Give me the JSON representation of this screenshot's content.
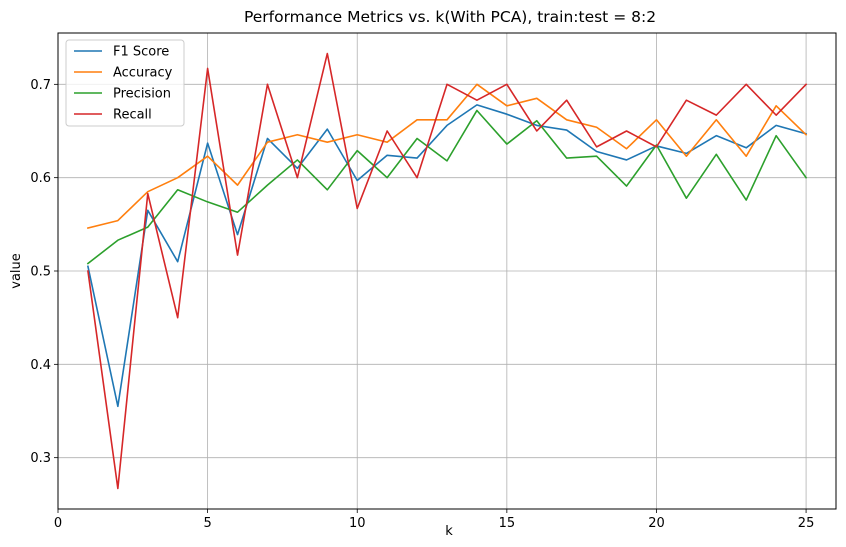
{
  "chart_data": {
    "type": "line",
    "title": "Performance Metrics vs. k(With PCA), train:test = 8:2",
    "xlabel": "k",
    "ylabel": "value",
    "xlim": [
      0,
      26
    ],
    "ylim": [
      0.245,
      0.755
    ],
    "xticks": [
      0,
      5,
      10,
      15,
      20,
      25
    ],
    "yticks": [
      0.3,
      0.4,
      0.5,
      0.6,
      0.7
    ],
    "grid": true,
    "legend_position": "top-left",
    "x": [
      1,
      2,
      3,
      4,
      5,
      6,
      7,
      8,
      9,
      10,
      11,
      12,
      13,
      14,
      15,
      16,
      17,
      18,
      19,
      20,
      21,
      22,
      23,
      24,
      25
    ],
    "series": [
      {
        "name": "F1 Score",
        "color": "#1f77b4",
        "values": [
          0.505,
          0.355,
          0.565,
          0.51,
          0.637,
          0.539,
          0.642,
          0.61,
          0.652,
          0.597,
          0.624,
          0.621,
          0.656,
          0.678,
          0.668,
          0.656,
          0.651,
          0.628,
          0.619,
          0.634,
          0.626,
          0.645,
          0.632,
          0.656,
          0.647
        ]
      },
      {
        "name": "Accuracy",
        "color": "#ff7f0e",
        "values": [
          0.546,
          0.554,
          0.585,
          0.6,
          0.623,
          0.592,
          0.638,
          0.646,
          0.638,
          0.646,
          0.638,
          0.662,
          0.662,
          0.7,
          0.677,
          0.685,
          0.662,
          0.654,
          0.631,
          0.662,
          0.623,
          0.662,
          0.623,
          0.677,
          0.646
        ]
      },
      {
        "name": "Precision",
        "color": "#2ca02c",
        "values": [
          0.508,
          0.533,
          0.547,
          0.587,
          0.574,
          0.563,
          0.592,
          0.619,
          0.587,
          0.629,
          0.6,
          0.642,
          0.618,
          0.672,
          0.636,
          0.661,
          0.621,
          0.623,
          0.591,
          0.635,
          0.578,
          0.625,
          0.576,
          0.645,
          0.6
        ]
      },
      {
        "name": "Recall",
        "color": "#d62728",
        "values": [
          0.5,
          0.267,
          0.583,
          0.45,
          0.717,
          0.517,
          0.7,
          0.6,
          0.733,
          0.567,
          0.65,
          0.6,
          0.7,
          0.683,
          0.7,
          0.65,
          0.683,
          0.633,
          0.65,
          0.633,
          0.683,
          0.667,
          0.7,
          0.667,
          0.7
        ]
      }
    ]
  }
}
